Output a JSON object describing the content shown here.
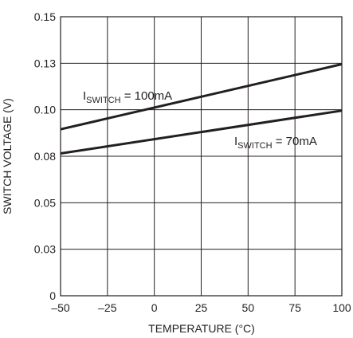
{
  "chart_data": {
    "type": "line",
    "title": "",
    "xlabel": "TEMPERATURE (°C)",
    "ylabel": "SWITCH VOLTAGE (V)",
    "xlim": [
      -50,
      100
    ],
    "ylim": [
      0,
      0.15
    ],
    "x_ticks": [
      "–50",
      "–25",
      "0",
      "25",
      "50",
      "75",
      "100"
    ],
    "y_ticks": [
      "0",
      "0.03",
      "0.05",
      "0.08",
      "0.10",
      "0.13",
      "0.15"
    ],
    "grid": true,
    "series": [
      {
        "label_main": "I",
        "label_sub": "SWITCH",
        "label_rest": " = 100mA",
        "x": [
          -50,
          100
        ],
        "y": [
          0.0895,
          0.1245
        ]
      },
      {
        "label_main": "I",
        "label_sub": "SWITCH",
        "label_rest": " = 70mA",
        "x": [
          -50,
          100
        ],
        "y": [
          0.0765,
          0.0995
        ]
      }
    ],
    "line_color": "#231f20",
    "grid_color": "#231f20"
  }
}
